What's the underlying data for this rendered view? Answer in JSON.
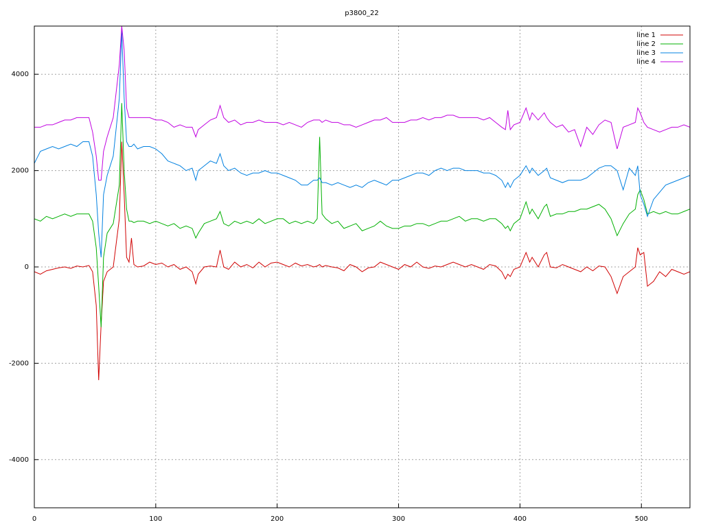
{
  "chart_data": {
    "type": "line",
    "title": "p3800_22",
    "x": [
      0,
      5,
      10,
      15,
      20,
      25,
      30,
      35,
      40,
      45,
      48,
      51,
      53,
      55,
      57,
      60,
      65,
      70,
      72,
      74,
      76,
      78,
      80,
      82,
      85,
      90,
      95,
      100,
      105,
      110,
      115,
      120,
      125,
      130,
      133,
      135,
      140,
      145,
      150,
      153,
      156,
      160,
      165,
      170,
      175,
      180,
      185,
      190,
      195,
      200,
      205,
      210,
      215,
      220,
      225,
      230,
      233,
      235,
      237,
      240,
      245,
      250,
      255,
      260,
      265,
      270,
      275,
      280,
      285,
      290,
      295,
      300,
      305,
      310,
      315,
      320,
      325,
      330,
      335,
      340,
      345,
      350,
      355,
      360,
      365,
      370,
      375,
      380,
      385,
      388,
      390,
      392,
      395,
      400,
      405,
      408,
      410,
      415,
      420,
      422,
      425,
      430,
      435,
      440,
      445,
      450,
      455,
      460,
      465,
      470,
      475,
      480,
      485,
      490,
      495,
      497,
      499,
      502,
      505,
      510,
      515,
      520,
      525,
      530,
      535,
      540
    ],
    "series": [
      {
        "name": "line 1",
        "color": "#d00000",
        "values": [
          -100,
          -150,
          -80,
          -50,
          -20,
          0,
          -30,
          20,
          0,
          30,
          -100,
          -800,
          -2350,
          -1200,
          -300,
          -100,
          0,
          1000,
          2600,
          1500,
          200,
          100,
          600,
          50,
          0,
          20,
          100,
          50,
          80,
          0,
          50,
          -50,
          0,
          -100,
          -350,
          -150,
          0,
          20,
          0,
          350,
          0,
          -50,
          100,
          0,
          50,
          -20,
          100,
          0,
          80,
          100,
          50,
          0,
          80,
          20,
          50,
          0,
          20,
          50,
          0,
          30,
          0,
          -20,
          -80,
          50,
          0,
          -100,
          -20,
          0,
          100,
          50,
          0,
          -50,
          50,
          0,
          100,
          0,
          -30,
          20,
          0,
          50,
          100,
          50,
          0,
          50,
          0,
          -50,
          50,
          20,
          -100,
          -250,
          -150,
          -200,
          -50,
          0,
          300,
          100,
          200,
          0,
          250,
          300,
          0,
          -20,
          50,
          0,
          -50,
          -100,
          0,
          -80,
          20,
          0,
          -200,
          -550,
          -200,
          -100,
          0,
          400,
          250,
          300,
          -400,
          -300,
          -100,
          -200,
          -50,
          -100,
          -150,
          -100
        ]
      },
      {
        "name": "line 2",
        "color": "#00b000",
        "values": [
          1000,
          950,
          1050,
          1000,
          1050,
          1100,
          1050,
          1100,
          1100,
          1100,
          950,
          400,
          -400,
          -1250,
          200,
          700,
          900,
          1700,
          3400,
          2000,
          1200,
          950,
          950,
          920,
          950,
          950,
          900,
          950,
          900,
          850,
          900,
          800,
          850,
          800,
          600,
          700,
          900,
          950,
          1000,
          1150,
          900,
          850,
          950,
          900,
          950,
          900,
          1000,
          900,
          950,
          1000,
          1000,
          900,
          950,
          900,
          950,
          900,
          1000,
          2700,
          1100,
          1000,
          900,
          950,
          800,
          850,
          900,
          750,
          800,
          850,
          950,
          850,
          800,
          800,
          850,
          850,
          900,
          900,
          850,
          900,
          950,
          950,
          1000,
          1050,
          950,
          1000,
          1000,
          950,
          1000,
          1000,
          900,
          800,
          850,
          750,
          900,
          1000,
          1350,
          1100,
          1200,
          1000,
          1250,
          1300,
          1050,
          1100,
          1100,
          1150,
          1150,
          1200,
          1200,
          1250,
          1300,
          1200,
          1000,
          650,
          900,
          1100,
          1200,
          1500,
          1600,
          1400,
          1100,
          1150,
          1100,
          1150,
          1100,
          1100,
          1150,
          1200
        ]
      },
      {
        "name": "line 3",
        "color": "#0080e0",
        "values": [
          2150,
          2400,
          2450,
          2500,
          2450,
          2500,
          2550,
          2500,
          2600,
          2600,
          2300,
          1500,
          700,
          200,
          1500,
          1900,
          2300,
          3500,
          4900,
          3500,
          2600,
          2500,
          2500,
          2550,
          2450,
          2500,
          2500,
          2450,
          2350,
          2200,
          2150,
          2100,
          2000,
          2050,
          1800,
          2000,
          2100,
          2200,
          2150,
          2350,
          2100,
          2000,
          2050,
          1950,
          1900,
          1950,
          1950,
          2000,
          1950,
          1950,
          1900,
          1850,
          1800,
          1700,
          1700,
          1800,
          1800,
          1850,
          1750,
          1750,
          1700,
          1750,
          1700,
          1650,
          1700,
          1650,
          1750,
          1800,
          1750,
          1700,
          1800,
          1800,
          1850,
          1900,
          1950,
          1950,
          1900,
          2000,
          2050,
          2000,
          2050,
          2050,
          2000,
          2000,
          2000,
          1950,
          1950,
          1900,
          1800,
          1650,
          1750,
          1650,
          1800,
          1900,
          2100,
          1950,
          2050,
          1900,
          2000,
          2050,
          1850,
          1800,
          1750,
          1800,
          1800,
          1800,
          1850,
          1950,
          2050,
          2100,
          2100,
          2000,
          1600,
          2050,
          1900,
          2100,
          1500,
          1300,
          1050,
          1400,
          1550,
          1700,
          1750,
          1800,
          1850,
          1900
        ]
      },
      {
        "name": "line 4",
        "color": "#c000e0",
        "values": [
          2900,
          2900,
          2950,
          2950,
          3000,
          3050,
          3050,
          3100,
          3100,
          3100,
          2800,
          2300,
          1800,
          1800,
          2400,
          2700,
          3100,
          4200,
          5000,
          4500,
          3300,
          3100,
          3100,
          3100,
          3100,
          3100,
          3100,
          3050,
          3050,
          3000,
          2900,
          2950,
          2900,
          2900,
          2700,
          2850,
          2950,
          3050,
          3100,
          3350,
          3100,
          3000,
          3050,
          2950,
          3000,
          3000,
          3050,
          3000,
          3000,
          3000,
          2950,
          3000,
          2950,
          2900,
          3000,
          3050,
          3050,
          3050,
          3000,
          3050,
          3000,
          3000,
          2950,
          2950,
          2900,
          2950,
          3000,
          3050,
          3050,
          3100,
          3000,
          3000,
          3000,
          3050,
          3050,
          3100,
          3050,
          3100,
          3100,
          3150,
          3150,
          3100,
          3100,
          3100,
          3100,
          3050,
          3100,
          3000,
          2900,
          2850,
          3250,
          2850,
          2950,
          3000,
          3300,
          3050,
          3200,
          3050,
          3200,
          3100,
          3000,
          2900,
          2950,
          2800,
          2850,
          2500,
          2900,
          2750,
          2950,
          3050,
          3000,
          2450,
          2900,
          2950,
          3000,
          3300,
          3200,
          3000,
          2900,
          2850,
          2800,
          2850,
          2900,
          2900,
          2950,
          2900
        ]
      }
    ],
    "xlim": [
      0,
      540
    ],
    "ylim": [
      -5000,
      5000
    ],
    "xticks": [
      0,
      100,
      200,
      300,
      400,
      500
    ],
    "yticks": [
      -4000,
      -2000,
      0,
      2000,
      4000
    ],
    "grid": true,
    "legend": "top-right"
  }
}
